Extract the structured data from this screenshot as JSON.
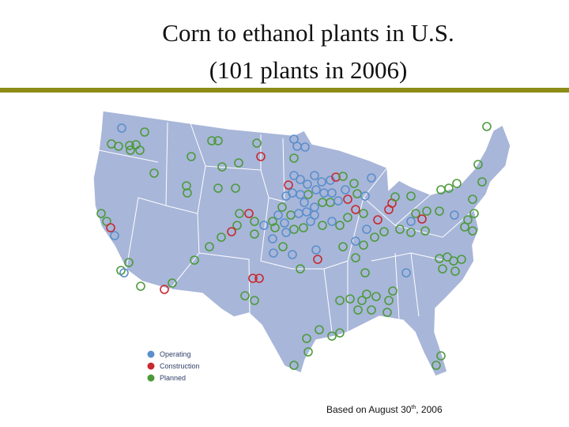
{
  "title": [
    "Corn to ethanol plants in U.S.",
    "(101 plants in 2006)"
  ],
  "legend": [
    {
      "label": "Operating",
      "color": "#5a8fcb"
    },
    {
      "label": "Construction",
      "color": "#c8282e"
    },
    {
      "label": "Planned",
      "color": "#4c9a3a"
    }
  ],
  "note": {
    "text": "Based on August 30",
    "sup": "th",
    "rest": ", 2006"
  }
}
